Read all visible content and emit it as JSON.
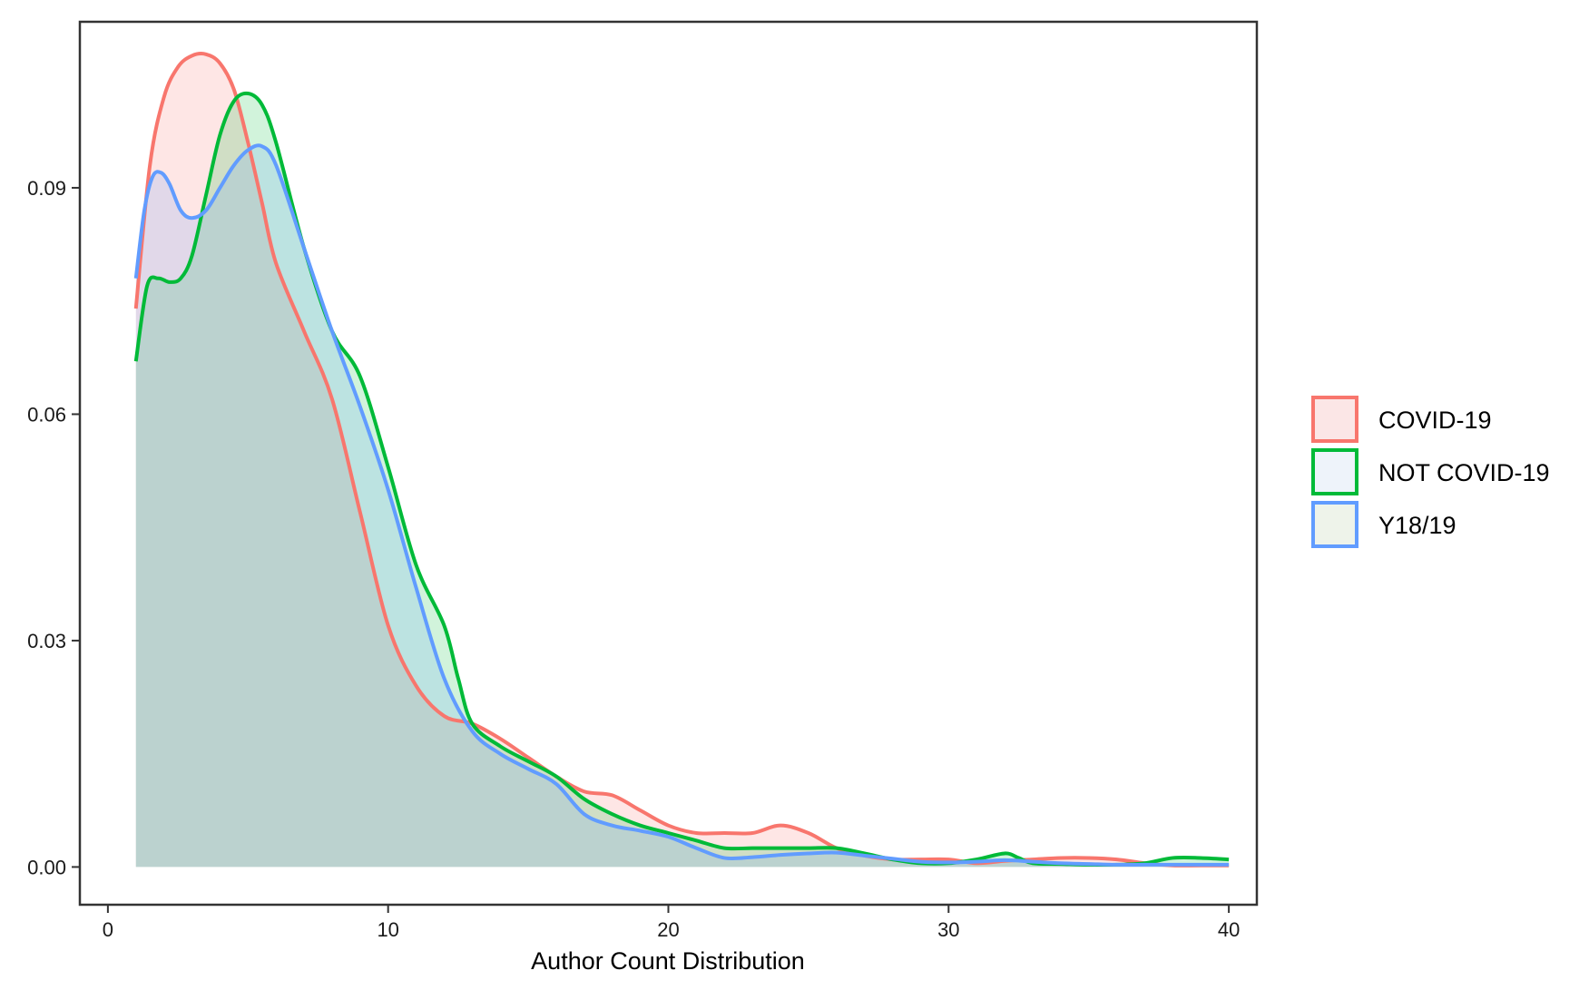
{
  "chart_data": {
    "type": "area",
    "xlabel": "Author Count Distribution",
    "ylabel": "",
    "xlim": [
      -1,
      41
    ],
    "ylim": [
      -0.005,
      0.112
    ],
    "x_ticks": [
      0,
      10,
      20,
      30,
      40
    ],
    "x_tick_labels": [
      "0",
      "10",
      "20",
      "30",
      "40"
    ],
    "y_ticks": [
      0.0,
      0.03,
      0.06,
      0.09
    ],
    "y_tick_labels": [
      "0.00",
      "0.03",
      "0.06",
      "0.09"
    ],
    "grid": false,
    "legend_position": "right",
    "series": [
      {
        "name": "COVID-19",
        "color": "#F8766D",
        "points": [
          [
            1,
            0.074
          ],
          [
            1.5,
            0.093
          ],
          [
            2,
            0.102
          ],
          [
            2.5,
            0.106
          ],
          [
            3,
            0.1075
          ],
          [
            3.5,
            0.1077
          ],
          [
            4,
            0.1065
          ],
          [
            4.5,
            0.103
          ],
          [
            5,
            0.096
          ],
          [
            5.5,
            0.088
          ],
          [
            6,
            0.08
          ],
          [
            7,
            0.071
          ],
          [
            8,
            0.062
          ],
          [
            9,
            0.047
          ],
          [
            10,
            0.032
          ],
          [
            11,
            0.024
          ],
          [
            12,
            0.02
          ],
          [
            13,
            0.019
          ],
          [
            14,
            0.017
          ],
          [
            15,
            0.0145
          ],
          [
            16,
            0.012
          ],
          [
            17,
            0.01
          ],
          [
            18,
            0.0095
          ],
          [
            19,
            0.0075
          ],
          [
            20,
            0.0055
          ],
          [
            21,
            0.0045
          ],
          [
            22,
            0.0045
          ],
          [
            23,
            0.0045
          ],
          [
            24,
            0.0055
          ],
          [
            25,
            0.0045
          ],
          [
            26,
            0.0025
          ],
          [
            27,
            0.0015
          ],
          [
            28,
            0.001
          ],
          [
            29,
            0.001
          ],
          [
            30,
            0.001
          ],
          [
            31,
            0.0005
          ],
          [
            32,
            0.0008
          ],
          [
            33,
            0.001
          ],
          [
            34,
            0.0012
          ],
          [
            35,
            0.0012
          ],
          [
            36,
            0.001
          ],
          [
            37,
            0.0005
          ],
          [
            38,
            0.0002
          ],
          [
            39,
            0.0002
          ],
          [
            40,
            0.0002
          ]
        ]
      },
      {
        "name": "NOT COVID-19",
        "color": "#00BA38",
        "points": [
          [
            1,
            0.067
          ],
          [
            1.4,
            0.077
          ],
          [
            1.8,
            0.078
          ],
          [
            2.2,
            0.0775
          ],
          [
            2.6,
            0.078
          ],
          [
            3,
            0.081
          ],
          [
            3.5,
            0.089
          ],
          [
            4,
            0.097
          ],
          [
            4.5,
            0.1015
          ],
          [
            5,
            0.1025
          ],
          [
            5.5,
            0.101
          ],
          [
            6,
            0.096
          ],
          [
            7,
            0.082
          ],
          [
            8,
            0.071
          ],
          [
            9,
            0.065
          ],
          [
            10,
            0.053
          ],
          [
            11,
            0.04
          ],
          [
            12,
            0.032
          ],
          [
            12.5,
            0.025
          ],
          [
            13,
            0.019
          ],
          [
            14,
            0.016
          ],
          [
            15,
            0.014
          ],
          [
            16,
            0.012
          ],
          [
            17,
            0.009
          ],
          [
            18,
            0.007
          ],
          [
            19,
            0.0055
          ],
          [
            20,
            0.0045
          ],
          [
            21,
            0.0035
          ],
          [
            22,
            0.0025
          ],
          [
            23,
            0.0025
          ],
          [
            24,
            0.0025
          ],
          [
            25,
            0.0025
          ],
          [
            26,
            0.0025
          ],
          [
            27,
            0.0018
          ],
          [
            28,
            0.001
          ],
          [
            29,
            0.0005
          ],
          [
            30,
            0.0005
          ],
          [
            31,
            0.001
          ],
          [
            32,
            0.0018
          ],
          [
            32.5,
            0.0012
          ],
          [
            33,
            0.0005
          ],
          [
            34,
            0.0004
          ],
          [
            35,
            0.0003
          ],
          [
            36,
            0.0003
          ],
          [
            37,
            0.0005
          ],
          [
            38,
            0.0012
          ],
          [
            39,
            0.0012
          ],
          [
            40,
            0.001
          ]
        ]
      },
      {
        "name": "Y18/19",
        "color": "#619CFF",
        "points": [
          [
            1,
            0.078
          ],
          [
            1.3,
            0.087
          ],
          [
            1.6,
            0.0915
          ],
          [
            1.9,
            0.092
          ],
          [
            2.2,
            0.0905
          ],
          [
            2.6,
            0.087
          ],
          [
            3,
            0.086
          ],
          [
            3.5,
            0.087
          ],
          [
            4,
            0.09
          ],
          [
            4.5,
            0.093
          ],
          [
            5,
            0.095
          ],
          [
            5.5,
            0.0955
          ],
          [
            6,
            0.093
          ],
          [
            7,
            0.082
          ],
          [
            8,
            0.071
          ],
          [
            9,
            0.061
          ],
          [
            10,
            0.05
          ],
          [
            11,
            0.037
          ],
          [
            12,
            0.025
          ],
          [
            13,
            0.018
          ],
          [
            14,
            0.015
          ],
          [
            15,
            0.013
          ],
          [
            16,
            0.011
          ],
          [
            17,
            0.007
          ],
          [
            18,
            0.0055
          ],
          [
            19,
            0.0048
          ],
          [
            20,
            0.004
          ],
          [
            21,
            0.0025
          ],
          [
            22,
            0.0012
          ],
          [
            23,
            0.0013
          ],
          [
            24,
            0.0016
          ],
          [
            25,
            0.0018
          ],
          [
            26,
            0.0019
          ],
          [
            27,
            0.0015
          ],
          [
            28,
            0.0011
          ],
          [
            29,
            0.0007
          ],
          [
            30,
            0.0006
          ],
          [
            31,
            0.0007
          ],
          [
            32,
            0.0009
          ],
          [
            33,
            0.0007
          ],
          [
            34,
            0.0005
          ],
          [
            35,
            0.0004
          ],
          [
            36,
            0.0003
          ],
          [
            37,
            0.0003
          ],
          [
            38,
            0.0003
          ],
          [
            39,
            0.0003
          ],
          [
            40,
            0.0003
          ]
        ]
      }
    ]
  },
  "legend": {
    "items": [
      {
        "label": "COVID-19",
        "color": "#F8766D",
        "fill": "#FBE6E6"
      },
      {
        "label": "NOT COVID-19",
        "color": "#00BA38",
        "fill": "#EEF3FA"
      },
      {
        "label": "Y18/19",
        "color": "#619CFF",
        "fill": "#EEF3EA"
      }
    ]
  }
}
